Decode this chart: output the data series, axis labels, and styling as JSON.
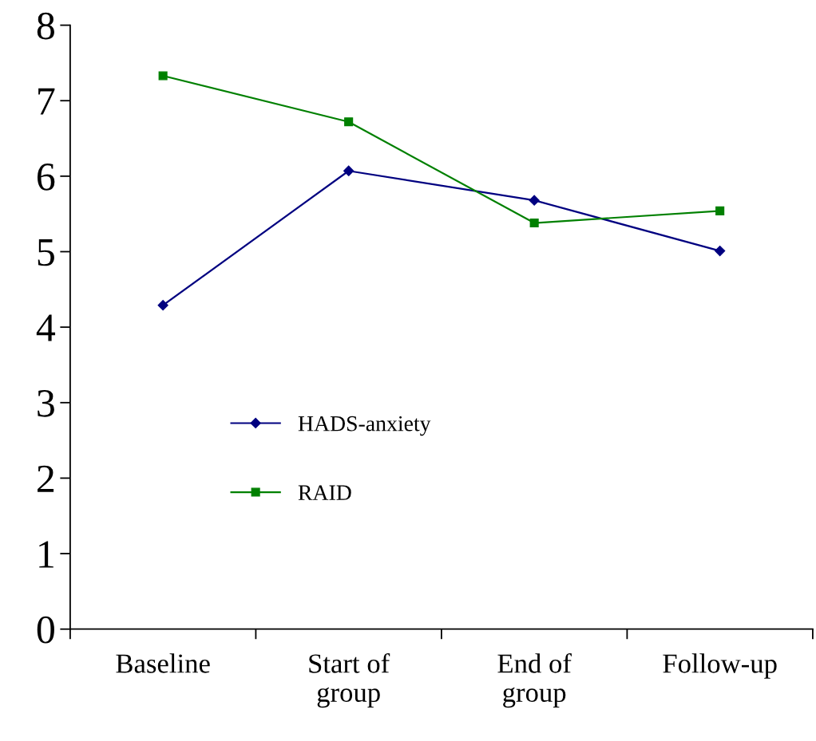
{
  "chart_data": {
    "type": "line",
    "categories": [
      "Baseline",
      "Start of\ngroup",
      "End of\ngroup",
      "Follow-up"
    ],
    "series": [
      {
        "name": "HADS-anxiety",
        "color": "#000080",
        "marker": "diamond",
        "values": [
          4.29,
          6.07,
          5.68,
          5.01
        ]
      },
      {
        "name": "RAID",
        "color": "#008000",
        "marker": "square",
        "values": [
          7.33,
          6.72,
          5.38,
          5.54
        ]
      }
    ],
    "ylim": [
      0,
      8
    ],
    "yticks": [
      0,
      1,
      2,
      3,
      4,
      5,
      6,
      7,
      8
    ],
    "grid": false,
    "legend": "bottom",
    "line_style": "solid"
  }
}
